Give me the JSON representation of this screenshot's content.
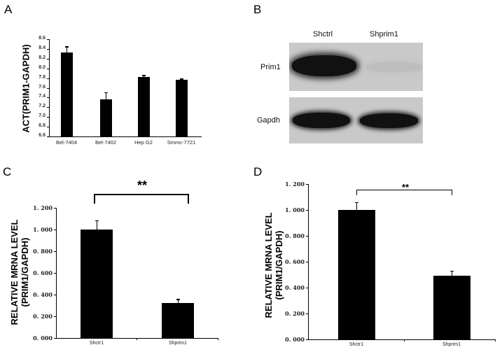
{
  "panels": {
    "A": {
      "letter": "A"
    },
    "B": {
      "letter": "B",
      "lane_labels": [
        "Shctrl",
        "Shprim1"
      ],
      "row_labels": [
        "Prim1",
        "Gapdh"
      ]
    },
    "C": {
      "letter": "C",
      "significance": "**"
    },
    "D": {
      "letter": "D",
      "significance": "**"
    }
  },
  "chart_data": [
    {
      "panel": "A",
      "type": "bar",
      "title": "",
      "xlabel": "",
      "ylabel": "ACT(PRIM1-GAPDH)",
      "categories": [
        "Bel-7404",
        "Bel-7402",
        "Hep G2",
        "Smmc-7721"
      ],
      "values": [
        8.32,
        7.36,
        7.82,
        7.76
      ],
      "errors": [
        0.13,
        0.15,
        0.04,
        0.03
      ],
      "ylim": [
        6.6,
        8.6
      ],
      "yticks": [
        "6.6",
        "6.8",
        "7.0",
        "7.2",
        "7.4",
        "7.6",
        "7.8",
        "8.0",
        "8.2",
        "8.4",
        "8.6"
      ],
      "grid": false,
      "legend": "none"
    },
    {
      "panel": "B",
      "type": "western_blot",
      "lanes": [
        "Shctrl",
        "Shprim1"
      ],
      "rows": [
        {
          "name": "Prim1",
          "band_intensity": [
            "strong",
            "very faint"
          ]
        },
        {
          "name": "Gapdh",
          "band_intensity": [
            "strong",
            "strong"
          ]
        }
      ]
    },
    {
      "panel": "C",
      "type": "bar",
      "title": "",
      "xlabel": "",
      "ylabel": "RELATIVE MRNA LEVEL (PRIM1/GAPDH)",
      "ylabel_lines": [
        "RELATIVE MRNA LEVEL",
        "(PRIM1/GAPDH)"
      ],
      "categories": [
        "Shctr1",
        "Shprim1"
      ],
      "values": [
        1.0,
        0.32
      ],
      "errors": [
        0.085,
        0.04
      ],
      "ylim": [
        0.0,
        1.2
      ],
      "yticks": [
        "0. 000",
        "0. 200",
        "0. 400",
        "0. 600",
        "0. 800",
        "1. 000",
        "1. 200"
      ],
      "annotation": "**",
      "grid": false,
      "legend": "none"
    },
    {
      "panel": "D",
      "type": "bar",
      "title": "",
      "xlabel": "",
      "ylabel": "RELATIVE MRNA LEVEL (PRIM1/GAPDH)",
      "ylabel_lines": [
        "RELATIVE MRNA LEVEL",
        "(PRIM1/GAPDH)"
      ],
      "categories": [
        "Shctr1",
        "Shprim1"
      ],
      "values": [
        1.0,
        0.49
      ],
      "errors": [
        0.06,
        0.04
      ],
      "ylim": [
        0.0,
        1.2
      ],
      "yticks": [
        "0. 000",
        "0. 200",
        "0. 400",
        "0. 600",
        "0. 800",
        "1. 000",
        "1. 200"
      ],
      "annotation": "**",
      "grid": false,
      "legend": "none"
    }
  ]
}
